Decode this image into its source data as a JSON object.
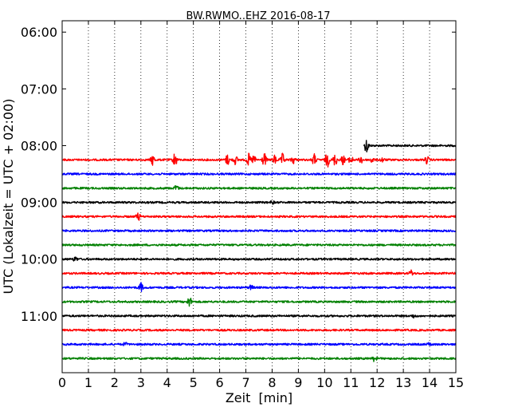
{
  "chart_data": {
    "type": "line",
    "title": "BW.RWMO..EHZ 2016-08-17",
    "xlabel": "Zeit  [min]",
    "ylabel": "UTC (Lokalzeit = UTC + 02:00)",
    "xlim": [
      0,
      15
    ],
    "xticks": [
      0,
      1,
      2,
      3,
      4,
      5,
      6,
      7,
      8,
      9,
      10,
      11,
      12,
      13,
      14,
      15
    ],
    "yticks": [
      "06:00",
      "07:00",
      "08:00",
      "09:00",
      "10:00",
      "11:00"
    ],
    "ylim_hours": [
      5.8,
      12.0
    ],
    "grid": "vertical dotted",
    "colors": [
      "#000000",
      "#ff0000",
      "#0000ff",
      "#008000"
    ],
    "traces": [
      {
        "start": "08:00",
        "color": "#000000",
        "x_start": 11.5,
        "x_end": 15,
        "events": [
          {
            "x": 11.6,
            "amp": 1.0
          }
        ]
      },
      {
        "start": "08:15",
        "color": "#ff0000",
        "x_start": 0,
        "x_end": 15,
        "events": [
          {
            "x": 3.45,
            "amp": 0.7
          },
          {
            "x": 4.3,
            "amp": 1.0
          },
          {
            "x": 6.3,
            "amp": 0.7
          },
          {
            "x": 6.6,
            "amp": 0.6
          },
          {
            "x": 7.1,
            "amp": 0.8
          },
          {
            "x": 7.3,
            "amp": 0.6
          },
          {
            "x": 7.7,
            "amp": 0.9
          },
          {
            "x": 8.1,
            "amp": 0.6
          },
          {
            "x": 8.4,
            "amp": 0.8
          },
          {
            "x": 8.8,
            "amp": 0.5
          },
          {
            "x": 9.6,
            "amp": 0.8
          },
          {
            "x": 10.1,
            "amp": 1.0
          },
          {
            "x": 10.4,
            "amp": 0.8
          },
          {
            "x": 10.7,
            "amp": 0.6
          },
          {
            "x": 11.0,
            "amp": 0.6
          },
          {
            "x": 11.4,
            "amp": 0.5
          },
          {
            "x": 11.8,
            "amp": 0.4
          },
          {
            "x": 12.2,
            "amp": 0.3
          },
          {
            "x": 13.9,
            "amp": 0.5
          }
        ]
      },
      {
        "start": "08:30",
        "color": "#0000ff",
        "x_start": 0,
        "x_end": 15,
        "events": []
      },
      {
        "start": "08:45",
        "color": "#008000",
        "x_start": 0,
        "x_end": 15,
        "events": [
          {
            "x": 4.35,
            "amp": 0.4
          }
        ]
      },
      {
        "start": "09:00",
        "color": "#000000",
        "x_start": 0,
        "x_end": 15,
        "events": [
          {
            "x": 8.0,
            "amp": 0.2
          }
        ]
      },
      {
        "start": "09:15",
        "color": "#ff0000",
        "x_start": 0,
        "x_end": 15,
        "events": [
          {
            "x": 2.9,
            "amp": 0.5
          }
        ]
      },
      {
        "start": "09:30",
        "color": "#0000ff",
        "x_start": 0,
        "x_end": 15,
        "events": []
      },
      {
        "start": "09:45",
        "color": "#008000",
        "x_start": 0,
        "x_end": 15,
        "events": []
      },
      {
        "start": "10:00",
        "color": "#000000",
        "x_start": 0,
        "x_end": 15,
        "events": [
          {
            "x": 0.5,
            "amp": 0.3
          }
        ]
      },
      {
        "start": "10:15",
        "color": "#ff0000",
        "x_start": 0,
        "x_end": 15,
        "events": [
          {
            "x": 13.3,
            "amp": 0.4
          }
        ]
      },
      {
        "start": "10:30",
        "color": "#0000ff",
        "x_start": 0,
        "x_end": 15,
        "events": [
          {
            "x": 3.0,
            "amp": 0.6
          },
          {
            "x": 7.2,
            "amp": 0.3
          }
        ]
      },
      {
        "start": "10:45",
        "color": "#008000",
        "x_start": 0,
        "x_end": 15,
        "events": [
          {
            "x": 4.85,
            "amp": 0.7
          }
        ]
      },
      {
        "start": "11:00",
        "color": "#000000",
        "x_start": 0,
        "x_end": 15,
        "events": [
          {
            "x": 13.4,
            "amp": 0.2
          }
        ]
      },
      {
        "start": "11:15",
        "color": "#ff0000",
        "x_start": 0,
        "x_end": 15,
        "events": []
      },
      {
        "start": "11:30",
        "color": "#0000ff",
        "x_start": 0,
        "x_end": 15,
        "events": [
          {
            "x": 2.4,
            "amp": 0.2
          },
          {
            "x": 14.0,
            "amp": 0.2
          }
        ]
      },
      {
        "start": "11:45",
        "color": "#008000",
        "x_start": 0,
        "x_end": 15,
        "events": [
          {
            "x": 11.9,
            "amp": 0.35
          }
        ]
      }
    ]
  }
}
